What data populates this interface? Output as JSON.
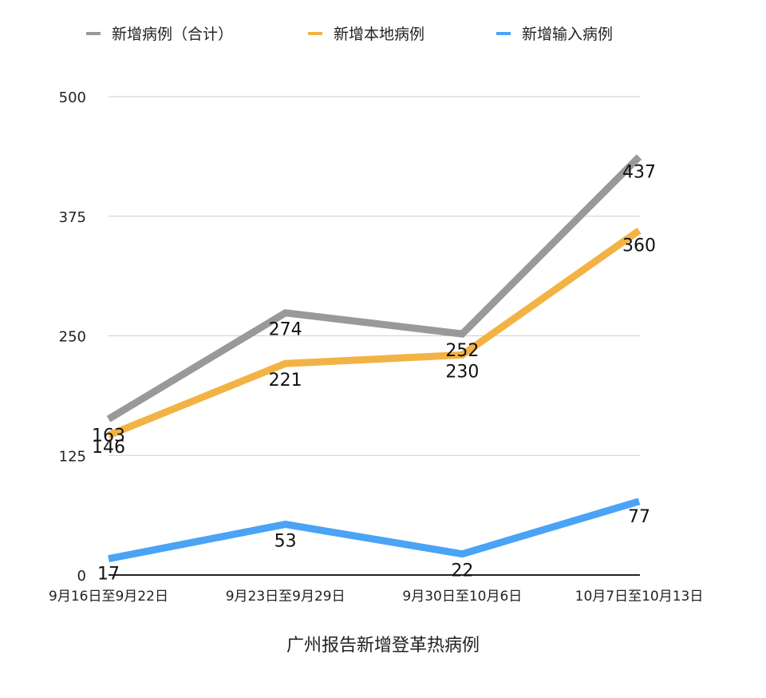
{
  "chart_data": {
    "type": "line",
    "title": "广州报告新增登革热病例",
    "xlabel": "",
    "ylabel": "",
    "categories": [
      "9月16日至9月22日",
      "9月23日至9月29日",
      "9月30日至10月6日",
      "10月7日至10月13日"
    ],
    "series": [
      {
        "name": "新增病例（合计）",
        "color": "#999999",
        "values": [
          163,
          274,
          252,
          437
        ]
      },
      {
        "name": "新增本地病例",
        "color": "#f2b344",
        "values": [
          146,
          221,
          230,
          360
        ]
      },
      {
        "name": "新增输入病例",
        "color": "#4aa3f5",
        "values": [
          17,
          53,
          22,
          77
        ]
      }
    ],
    "ylim": [
      0,
      500
    ],
    "yticks": [
      0,
      125,
      250,
      375,
      500
    ],
    "grid": true,
    "legend_position": "top",
    "data_labels": true
  }
}
